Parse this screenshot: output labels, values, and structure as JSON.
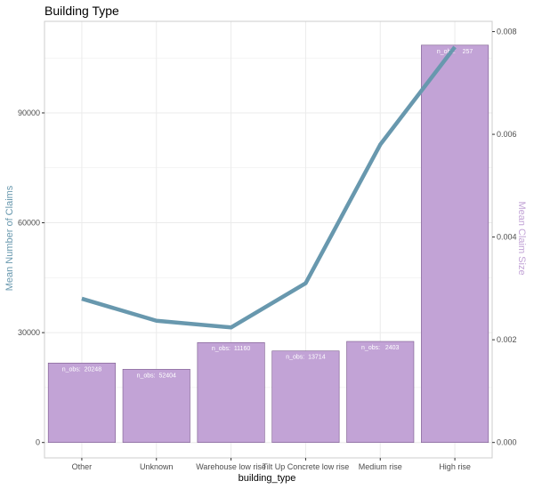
{
  "chart_data": {
    "type": "bar+line",
    "title": "Building Type",
    "xlabel": "building_type",
    "ylabel_left": "Mean Number of Claims",
    "ylabel_right": "Mean Claim Size",
    "categories": [
      "Other",
      "Unknown",
      "Warehouse low rise",
      "Tilt Up Concrete low rise",
      "Medium rise",
      "High rise"
    ],
    "bars": {
      "name": "Mean Number of Claims",
      "values": [
        21700,
        20000,
        27300,
        25000,
        27600,
        108500
      ],
      "labels": [
        "n_obs:  20248",
        "n_obs:  52404",
        "n_obs:  11160",
        "n_obs:  13714",
        "n_obs:   2403",
        "n_obs:    257"
      ]
    },
    "line": {
      "name": "Mean Claim Size",
      "values": [
        0.0028,
        0.00237,
        0.00224,
        0.0031,
        0.0058,
        0.0077
      ]
    },
    "ylim_left": [
      -4200,
      115000
    ],
    "yticks_left": [
      0,
      30000,
      60000,
      90000
    ],
    "ytick_labels_left": [
      "0",
      "30000",
      "60000",
      "90000"
    ],
    "ylim_right": [
      -0.0003,
      0.0082
    ],
    "yticks_right": [
      0,
      0.002,
      0.004,
      0.006,
      0.008
    ],
    "ytick_labels_right": [
      "0.000",
      "0.002",
      "0.004",
      "0.006",
      "0.008"
    ],
    "grid": true,
    "colors": {
      "bar_fill": "#c2a3d6",
      "bar_stroke": "#7a5a8c",
      "line": "#6898ae",
      "left_axis_title": "#6898ae",
      "right_axis_title": "#c2a3d6",
      "grid": "#ebebeb",
      "panel_border": "#cccccc"
    }
  }
}
